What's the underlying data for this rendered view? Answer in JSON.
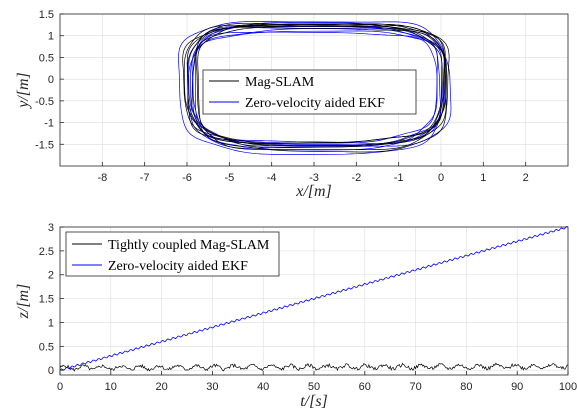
{
  "chart_data": [
    {
      "type": "line",
      "xlabel": "x/[m]",
      "ylabel": "y/[m]",
      "xlim": [
        -9,
        3
      ],
      "ylim": [
        -2,
        1.5
      ],
      "xticks": [
        -8,
        -7,
        -6,
        -5,
        -4,
        -3,
        -2,
        -1,
        0,
        1,
        2
      ],
      "yticks": [
        -1.5,
        -1,
        -0.5,
        0,
        0.5,
        1,
        1.5
      ],
      "grid": true,
      "legend": "center",
      "track": {
        "center_x": -2.95,
        "center_y": -0.15,
        "x_half_width": 3.0,
        "y_half_height": 1.4,
        "shape_exponent": 4,
        "laps": 7
      },
      "series": [
        {
          "name": "Mag-SLAM",
          "color": "#000000"
        },
        {
          "name": "Zero-velocity aided EKF",
          "color": "#0000ff"
        }
      ]
    },
    {
      "type": "line",
      "xlabel": "t/[s]",
      "ylabel": "z/[m]",
      "xlim": [
        0,
        100
      ],
      "ylim": [
        -0.1,
        3
      ],
      "xticks": [
        0,
        10,
        20,
        30,
        40,
        50,
        60,
        70,
        80,
        90,
        100
      ],
      "yticks": [
        0,
        0.5,
        1,
        1.5,
        2,
        2.5,
        3
      ],
      "grid": true,
      "legend": "top-left",
      "series": [
        {
          "name": "Tightly coupled Mag-SLAM",
          "color": "#000000",
          "x": [
            0,
            100
          ],
          "y": [
            0.05,
            0.08
          ]
        },
        {
          "name": "Zero-velocity aided EKF",
          "color": "#0000ff",
          "x": [
            0,
            100
          ],
          "y": [
            0,
            3
          ]
        }
      ]
    }
  ]
}
